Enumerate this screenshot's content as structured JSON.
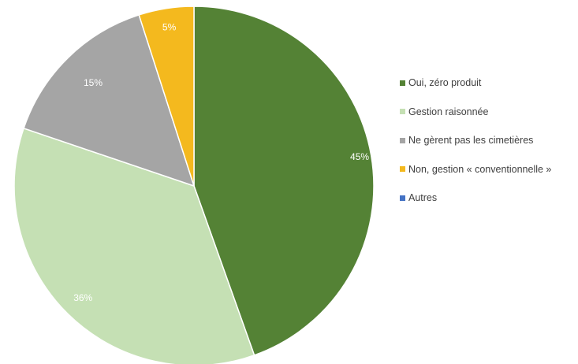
{
  "chart_data": {
    "type": "pie",
    "title": "",
    "categories": [
      "Oui, zéro produit",
      "Gestion raisonnée",
      "Ne gèrent pas les cimetières",
      "Non, gestion « conventionnelle »",
      "Autres"
    ],
    "values": [
      45,
      36,
      15,
      5,
      0
    ],
    "data_labels": [
      "45%",
      "36%",
      "15%",
      "5%",
      ""
    ],
    "colors": [
      "#548235",
      "#c5e0b4",
      "#a5a5a5",
      "#f4b91e",
      "#4472c4"
    ],
    "legend_position": "right"
  }
}
